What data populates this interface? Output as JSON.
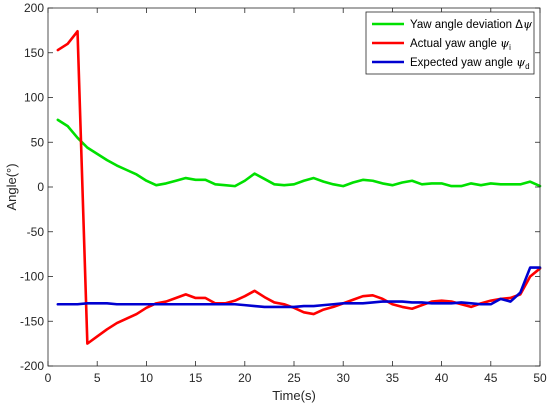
{
  "chart_data": {
    "type": "line",
    "xlabel": "Time(s)",
    "ylabel": "Angle(°)",
    "xlim": [
      0,
      50
    ],
    "ylim": [
      -200,
      200
    ],
    "xticks": [
      0,
      5,
      10,
      15,
      20,
      25,
      30,
      35,
      40,
      45,
      50
    ],
    "yticks": [
      200,
      150,
      100,
      50,
      0,
      -50,
      -100,
      -150,
      -200
    ],
    "grid": false,
    "legend_position": "top-right",
    "series": [
      {
        "name": "Yaw angle deviation Δψ",
        "legend_main": "Yaw angle deviation Δ",
        "legend_symbol": "ψ",
        "legend_sub": "",
        "color": "#00e000",
        "x": [
          1,
          2,
          3,
          4,
          5,
          6,
          7,
          8,
          9,
          10,
          11,
          12,
          13,
          14,
          15,
          16,
          17,
          18,
          19,
          20,
          21,
          22,
          23,
          24,
          25,
          26,
          27,
          28,
          29,
          30,
          31,
          32,
          33,
          34,
          35,
          36,
          37,
          38,
          39,
          40,
          41,
          42,
          43,
          44,
          45,
          46,
          47,
          48,
          49,
          50
        ],
        "y": [
          75,
          68,
          55,
          44,
          37,
          30,
          24,
          19,
          14,
          7,
          2,
          4,
          7,
          10,
          8,
          8,
          3,
          2,
          1,
          7,
          15,
          9,
          3,
          2,
          3,
          7,
          10,
          6,
          3,
          1,
          5,
          8,
          7,
          4,
          2,
          5,
          7,
          3,
          4,
          4,
          1,
          1,
          4,
          2,
          4,
          3,
          3,
          3,
          6,
          1
        ]
      },
      {
        "name": "Actual yaw angle ψi",
        "legend_main": "Actual yaw angle ",
        "legend_symbol": "ψ",
        "legend_sub": "i",
        "color": "#ff0000",
        "x": [
          1,
          2,
          3,
          4,
          5,
          6,
          7,
          8,
          9,
          10,
          11,
          12,
          13,
          14,
          15,
          16,
          17,
          18,
          19,
          20,
          21,
          22,
          23,
          24,
          25,
          26,
          27,
          28,
          29,
          30,
          31,
          32,
          33,
          34,
          35,
          36,
          37,
          38,
          39,
          40,
          41,
          42,
          43,
          44,
          45,
          46,
          47,
          48,
          49,
          50
        ],
        "y": [
          153,
          160,
          174,
          -175,
          -167,
          -159,
          -152,
          -147,
          -142,
          -135,
          -130,
          -128,
          -124,
          -120,
          -124,
          -124,
          -130,
          -130,
          -127,
          -122,
          -116,
          -123,
          -129,
          -131,
          -135,
          -140,
          -142,
          -137,
          -134,
          -130,
          -126,
          -122,
          -121,
          -125,
          -131,
          -134,
          -136,
          -132,
          -128,
          -127,
          -128,
          -131,
          -134,
          -130,
          -127,
          -125,
          -124,
          -120,
          -100,
          -91
        ]
      },
      {
        "name": "Expected yaw angle ψd",
        "legend_main": "Expected yaw angle ",
        "legend_symbol": "ψ",
        "legend_sub": "d",
        "color": "#0000d0",
        "x": [
          1,
          2,
          3,
          4,
          5,
          6,
          7,
          8,
          9,
          10,
          11,
          12,
          13,
          14,
          15,
          16,
          17,
          18,
          19,
          20,
          21,
          22,
          23,
          24,
          25,
          26,
          27,
          28,
          29,
          30,
          31,
          32,
          33,
          34,
          35,
          36,
          37,
          38,
          39,
          40,
          41,
          42,
          43,
          44,
          45,
          46,
          47,
          48,
          49,
          50
        ],
        "y": [
          -131,
          -131,
          -131,
          -130,
          -130,
          -130,
          -131,
          -131,
          -131,
          -131,
          -131,
          -131,
          -131,
          -131,
          -131,
          -131,
          -131,
          -131,
          -131,
          -132,
          -133,
          -134,
          -134,
          -134,
          -134,
          -133,
          -133,
          -132,
          -131,
          -130,
          -130,
          -130,
          -129,
          -128,
          -128,
          -128,
          -129,
          -129,
          -130,
          -130,
          -130,
          -129,
          -130,
          -131,
          -131,
          -125,
          -128,
          -118,
          -90,
          -90
        ]
      }
    ]
  }
}
